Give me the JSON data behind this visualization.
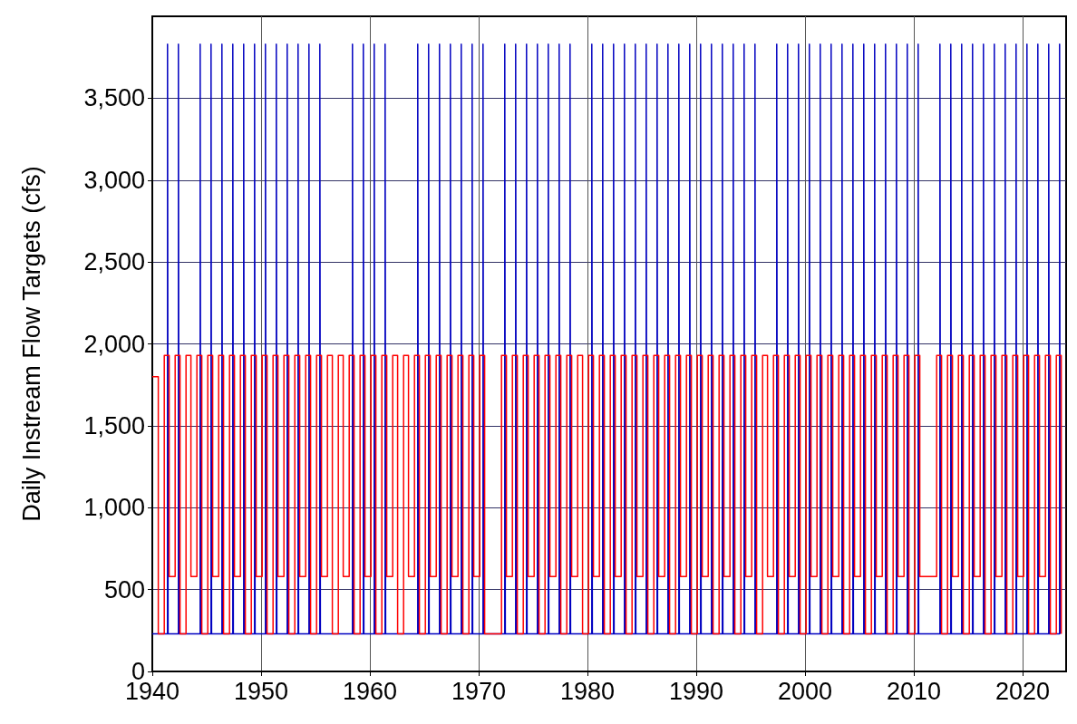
{
  "chart_data": {
    "type": "step",
    "ylabel": "Daily Instream Flow Targets (cfs)",
    "xlim": [
      1940,
      2024
    ],
    "xticks": [
      1940,
      1950,
      1960,
      1970,
      1980,
      1990,
      2000,
      2010,
      2020
    ],
    "ylim": [
      0,
      4000
    ],
    "yticks": [
      0,
      500,
      {
        "value": 1000,
        "label": "1,000"
      },
      {
        "value": 1500,
        "label": "1,500"
      },
      {
        "value": 2000,
        "label": "2,000"
      },
      {
        "value": 2500,
        "label": "2,500"
      },
      {
        "value": 3000,
        "label": "3,000"
      },
      {
        "value": 3500,
        "label": "3,500"
      }
    ],
    "grid": true,
    "marker": "none",
    "line_style": "solid",
    "series": [
      {
        "color": "#0000c0",
        "x": [
          1940,
          1941.4,
          1941.45,
          1942.4,
          1942.45,
          1944.4,
          1944.45,
          1945.4,
          1945.45,
          1946.4,
          1946.45,
          1947.4,
          1947.45,
          1948.4,
          1948.45,
          1949.4,
          1949.45,
          1950.4,
          1950.45,
          1951.4,
          1951.45,
          1952.4,
          1952.45,
          1953.4,
          1953.45,
          1954.4,
          1954.45,
          1955.4,
          1955.45,
          1958.4,
          1958.45,
          1959.4,
          1959.45,
          1960.4,
          1960.45,
          1961.4,
          1961.45,
          1964.4,
          1964.45,
          1965.4,
          1965.45,
          1966.4,
          1966.45,
          1967.4,
          1967.45,
          1968.4,
          1968.45,
          1969.4,
          1969.45,
          1970.4,
          1970.45,
          1972.4,
          1972.45,
          1973.4,
          1973.45,
          1974.4,
          1974.45,
          1975.4,
          1975.45,
          1976.4,
          1976.45,
          1977.4,
          1977.45,
          1978.4,
          1978.45,
          1980.4,
          1980.45,
          1981.4,
          1981.45,
          1982.4,
          1982.45,
          1983.4,
          1983.45,
          1984.4,
          1984.45,
          1985.4,
          1985.45,
          1986.4,
          1986.45,
          1987.4,
          1987.45,
          1988.4,
          1988.45,
          1989.4,
          1989.45,
          1990.4,
          1990.45,
          1991.4,
          1991.45,
          1992.4,
          1992.45,
          1993.4,
          1993.45,
          1994.4,
          1994.45,
          1995.4,
          1995.45,
          1997.4,
          1997.45,
          1998.4,
          1998.45,
          1999.4,
          1999.45,
          2000.4,
          2000.45,
          2001.4,
          2001.45,
          2002.4,
          2002.45,
          2003.4,
          2003.45,
          2004.4,
          2004.45,
          2005.4,
          2005.45,
          2006.4,
          2006.45,
          2007.4,
          2007.45,
          2008.4,
          2008.45,
          2009.4,
          2009.45,
          2010.4,
          2010.45,
          2012.4,
          2012.45,
          2013.4,
          2013.45,
          2014.4,
          2014.45,
          2015.4,
          2015.45,
          2016.4,
          2016.45,
          2017.4,
          2017.45,
          2018.4,
          2018.45,
          2019.4,
          2019.45,
          2020.4,
          2020.45,
          2021.4,
          2021.45,
          2022.4,
          2022.45,
          2023.4,
          2023.45
        ],
        "values": [
          230,
          3830,
          230,
          3830,
          230,
          3830,
          230,
          3830,
          230,
          3830,
          230,
          3830,
          230,
          3830,
          230,
          3830,
          230,
          3830,
          230,
          3830,
          230,
          3830,
          230,
          3830,
          230,
          3830,
          230,
          3830,
          230,
          3830,
          230,
          3830,
          230,
          3830,
          230,
          3830,
          230,
          3830,
          230,
          3830,
          230,
          3830,
          230,
          3830,
          230,
          3830,
          230,
          3830,
          230,
          3830,
          230,
          3830,
          230,
          3830,
          230,
          3830,
          230,
          3830,
          230,
          3830,
          230,
          3830,
          230,
          3830,
          230,
          3830,
          230,
          3830,
          230,
          3830,
          230,
          3830,
          230,
          3830,
          230,
          3830,
          230,
          3830,
          230,
          3830,
          230,
          3830,
          230,
          3830,
          230,
          3830,
          230,
          3830,
          230,
          3830,
          230,
          3830,
          230,
          3830,
          230,
          3830,
          230,
          3830,
          230,
          3830,
          230,
          3830,
          230,
          3830,
          230,
          3830,
          230,
          3830,
          230,
          3830,
          230,
          3830,
          230,
          3830,
          230,
          3830,
          230,
          3830,
          230,
          3830,
          230,
          3830,
          230,
          3830,
          230,
          3830,
          230,
          3830,
          230,
          3830,
          230,
          3830,
          230,
          3830,
          230,
          3830,
          230,
          3830,
          230,
          3830,
          230,
          3830,
          230,
          3830,
          230,
          3830,
          230,
          3830,
          230
        ]
      },
      {
        "color": "#ff0000",
        "x": [
          1940,
          1940.55,
          1941.1,
          1941.55,
          1942.1,
          1942.55,
          1943.1,
          1943.55,
          1944.1,
          1944.55,
          1945.1,
          1945.55,
          1946.1,
          1946.55,
          1947.1,
          1947.55,
          1948.1,
          1948.55,
          1949.1,
          1949.55,
          1950.1,
          1950.55,
          1951.1,
          1951.55,
          1952.1,
          1952.55,
          1953.1,
          1953.55,
          1954.1,
          1954.55,
          1955.1,
          1955.55,
          1956.1,
          1956.55,
          1957.1,
          1957.55,
          1958.1,
          1958.55,
          1959.1,
          1959.55,
          1960.1,
          1960.55,
          1961.1,
          1961.55,
          1962.1,
          1962.55,
          1963.1,
          1963.55,
          1964.1,
          1964.55,
          1965.1,
          1965.55,
          1966.1,
          1966.55,
          1967.1,
          1967.55,
          1968.1,
          1968.55,
          1969.1,
          1969.55,
          1970.1,
          1970.55,
          1972.1,
          1972.55,
          1973.1,
          1973.55,
          1974.1,
          1974.55,
          1975.1,
          1975.55,
          1976.1,
          1976.55,
          1977.1,
          1977.55,
          1978.1,
          1978.55,
          1979.1,
          1979.55,
          1980.1,
          1980.55,
          1981.1,
          1981.55,
          1982.1,
          1982.55,
          1983.1,
          1983.55,
          1984.1,
          1984.55,
          1985.1,
          1985.55,
          1986.1,
          1986.55,
          1987.1,
          1987.55,
          1988.1,
          1988.55,
          1989.1,
          1989.55,
          1990.1,
          1990.55,
          1991.1,
          1991.55,
          1992.1,
          1992.55,
          1993.1,
          1993.55,
          1994.1,
          1994.55,
          1995.1,
          1995.55,
          1996.1,
          1996.55,
          1997.1,
          1997.55,
          1998.1,
          1998.55,
          1999.1,
          1999.55,
          2000.1,
          2000.55,
          2001.1,
          2001.55,
          2002.1,
          2002.55,
          2003.1,
          2003.55,
          2004.1,
          2004.55,
          2005.1,
          2005.55,
          2006.1,
          2006.55,
          2007.1,
          2007.55,
          2008.1,
          2008.55,
          2009.1,
          2009.55,
          2010.1,
          2010.55,
          2012.1,
          2012.55,
          2013.1,
          2013.55,
          2014.1,
          2014.55,
          2015.1,
          2015.55,
          2016.1,
          2016.55,
          2017.1,
          2017.55,
          2018.1,
          2018.55,
          2019.1,
          2019.55,
          2020.1,
          2020.55,
          2021.1,
          2021.55,
          2022.1,
          2022.55,
          2023.1,
          2023.55
        ],
        "values": [
          1800,
          230,
          1930,
          580,
          1930,
          230,
          1930,
          580,
          1930,
          230,
          1930,
          580,
          1930,
          230,
          1930,
          580,
          1930,
          230,
          1930,
          580,
          1930,
          230,
          1930,
          580,
          1930,
          230,
          1930,
          580,
          1930,
          230,
          1930,
          580,
          1930,
          230,
          1930,
          580,
          1930,
          230,
          1930,
          580,
          1930,
          230,
          1930,
          580,
          1930,
          230,
          1930,
          580,
          1930,
          230,
          1930,
          580,
          1930,
          230,
          1930,
          580,
          1930,
          230,
          1930,
          580,
          1930,
          230,
          1930,
          580,
          1930,
          230,
          1930,
          580,
          1930,
          230,
          1930,
          580,
          1930,
          230,
          1930,
          580,
          1930,
          230,
          1930,
          580,
          1930,
          230,
          1930,
          580,
          1930,
          230,
          1930,
          580,
          1930,
          230,
          1930,
          580,
          1930,
          230,
          1930,
          580,
          1930,
          230,
          1930,
          580,
          1930,
          230,
          1930,
          580,
          1930,
          230,
          1930,
          580,
          1930,
          230,
          1930,
          580,
          1930,
          230,
          1930,
          580,
          1930,
          230,
          1930,
          580,
          1930,
          230,
          1930,
          580,
          1930,
          230,
          1930,
          580,
          1930,
          230,
          1930,
          580,
          1930,
          230,
          1930,
          580,
          1930,
          230,
          1930,
          580,
          1930,
          230,
          1930,
          580,
          1930,
          230,
          1930,
          580,
          1930,
          230,
          1930,
          580,
          1930,
          230,
          1930,
          580,
          1930,
          230,
          1930,
          580,
          1930,
          230,
          1930,
          230
        ]
      }
    ]
  }
}
